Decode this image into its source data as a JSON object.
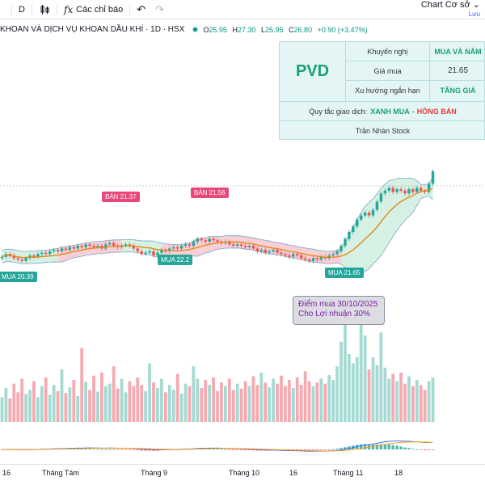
{
  "toolbar": {
    "interval": "D",
    "candle_icon": "candles-icon",
    "indicators_label": "Các chỉ báo",
    "undo_icon": "undo-icon",
    "redo_icon": "redo-icon",
    "chart_name": "Chart Cơ sở",
    "save_label": "Lưu"
  },
  "symbol": {
    "name": "KHOAN VÀ DỊCH VỤ KHOAN DẦU KHÍ · 1D · HSX",
    "ohlc": [
      {
        "label": "O",
        "value": "25.95"
      },
      {
        "label": "H",
        "value": "27.30"
      },
      {
        "label": "L",
        "value": "25.95"
      },
      {
        "label": "C",
        "value": "26.80"
      }
    ],
    "change": "+0.90 (+3.47%)"
  },
  "info_table": {
    "ticker": "PVD",
    "rows": [
      {
        "key": "Khuyến nghị",
        "value": "MUA VÀ NẮM"
      },
      {
        "key": "Giá mua",
        "value": "21.65"
      },
      {
        "key": "Xu hướng ngắn hạn",
        "value": "TĂNG GIÁ"
      }
    ],
    "rule_label": "Quy tắc giao dịch:",
    "rule_buy": "XANH MUA",
    "rule_dash": "-",
    "rule_sell": "HỒNG BÁN",
    "author": "Trần Nhàn Stock"
  },
  "signals": [
    {
      "type": "sell",
      "text": "BÁN 21.37"
    },
    {
      "type": "sell",
      "text": "BÁN 21.56"
    },
    {
      "type": "buy",
      "text": "MUA 20.39"
    },
    {
      "type": "buy",
      "text": "MUA 22.2"
    },
    {
      "type": "buy",
      "text": "MUA 21.65"
    }
  ],
  "callout": {
    "line1": "Điểm mua 30/10/2025",
    "line2": "Cho Lợi nhuận 30%"
  },
  "x_axis": [
    "16",
    "Tháng Tám",
    "Tháng 9",
    "Tháng 10",
    "16",
    "Tháng 11",
    "18"
  ],
  "colors": {
    "up": "#26a69a",
    "down": "#ef5350",
    "band_sell": "#f7c7cf",
    "band_buy": "#cfeede",
    "ma": "#e08a1e"
  },
  "chart_data": {
    "type": "candlestick",
    "closes": [
      20.6,
      20.8,
      20.7,
      20.5,
      20.4,
      20.3,
      20.5,
      20.7,
      20.6,
      20.8,
      20.9,
      20.8,
      21.0,
      21.1,
      21.0,
      21.2,
      21.1,
      21.3,
      21.2,
      21.4,
      21.3,
      21.5,
      21.4,
      21.3,
      21.4,
      21.2,
      21.5,
      21.6,
      21.4,
      21.3,
      21.4,
      21.5,
      21.4,
      21.2,
      21.0,
      20.8,
      20.9,
      21.0,
      20.7,
      20.9,
      21.1,
      21.0,
      21.2,
      21.3,
      21.2,
      21.4,
      21.5,
      21.4,
      21.7,
      21.9,
      21.8,
      21.7,
      21.9,
      21.8,
      21.7,
      21.6,
      21.7,
      21.5,
      21.4,
      21.5,
      21.4,
      21.3,
      21.4,
      21.2,
      21.0,
      21.1,
      20.9,
      21.0,
      21.1,
      20.9,
      20.8,
      20.7,
      20.6,
      20.8,
      20.7,
      20.5,
      20.4,
      20.3,
      20.5,
      20.4,
      20.6,
      20.5,
      20.7,
      20.8,
      21.0,
      21.4,
      21.9,
      22.4,
      22.8,
      23.3,
      23.6,
      23.8,
      23.6,
      24.0,
      24.6,
      25.2,
      25.4,
      25.6,
      25.3,
      25.5,
      25.4,
      25.2,
      25.5,
      25.3,
      25.6,
      25.4,
      25.3,
      25.9,
      26.8
    ],
    "volumes": [
      40,
      55,
      38,
      62,
      48,
      70,
      45,
      52,
      66,
      40,
      58,
      72,
      44,
      60,
      50,
      85,
      47,
      56,
      68,
      42,
      120,
      65,
      52,
      75,
      49,
      80,
      58,
      62,
      90,
      54,
      70,
      48,
      66,
      58,
      72,
      60,
      50,
      95,
      64,
      55,
      70,
      48,
      60,
      52,
      78,
      46,
      62,
      58,
      90,
      70,
      55,
      68,
      60,
      72,
      50,
      64,
      58,
      70,
      52,
      62,
      54,
      66,
      58,
      74,
      60,
      80,
      64,
      56,
      70,
      62,
      75,
      58,
      68,
      55,
      72,
      60,
      82,
      66,
      58,
      64,
      70,
      62,
      76,
      68,
      90,
      130,
      160,
      110,
      95,
      105,
      160,
      140,
      85,
      105,
      92,
      145,
      88,
      70,
      78,
      66,
      80,
      62,
      74,
      58,
      68,
      60,
      52,
      66,
      72
    ]
  }
}
